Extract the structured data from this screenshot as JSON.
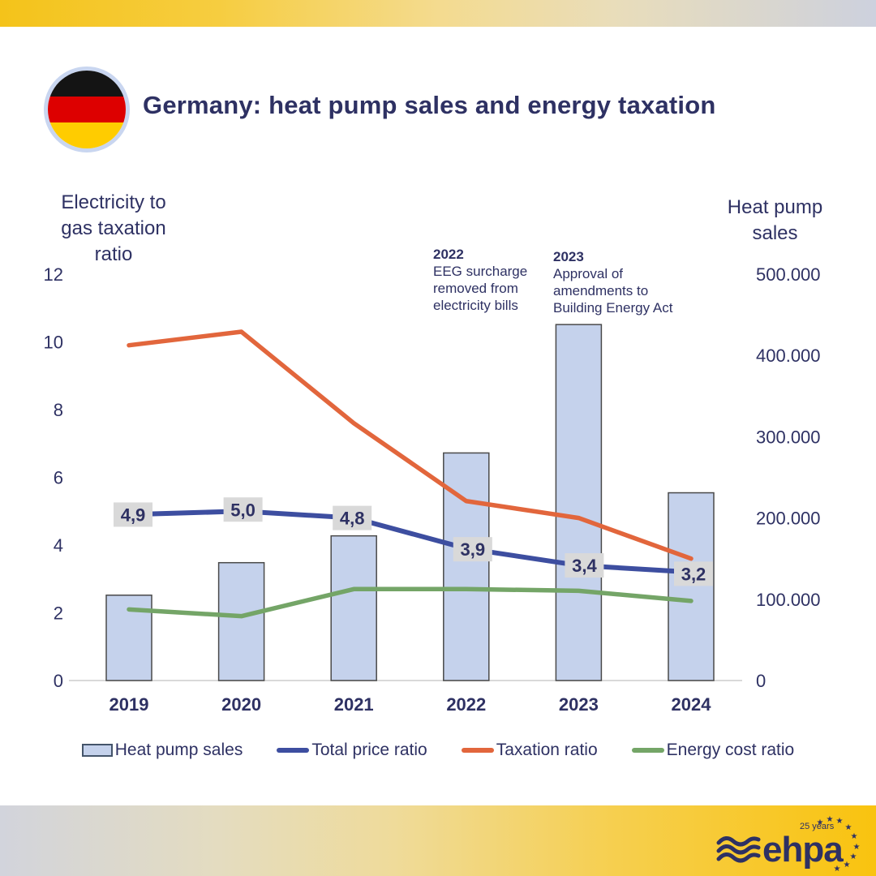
{
  "page": {
    "title": "Germany: heat pump sales and energy taxation"
  },
  "branding": {
    "flag": {
      "country": "germany",
      "stripes": [
        "#141414",
        "#DD0000",
        "#FFCC00"
      ],
      "ring": "#C9D6F0"
    },
    "logo": {
      "text": "ehpa",
      "badge": "25 years"
    }
  },
  "colors": {
    "text_navy": "#2E3163",
    "bar_fill": "#C5D2EC",
    "bar_stroke": "#4A4A4A",
    "label_bg": "#D9D9D9",
    "axis_line": "#D9D9D9",
    "blue_line": "#3D4EA0",
    "orange_line": "#E2663C",
    "green_line": "#74A567"
  },
  "chart_data": {
    "type": "combo-bar-line",
    "categories": [
      "2019",
      "2020",
      "2021",
      "2022",
      "2023",
      "2024"
    ],
    "bar_series": {
      "name": "Heat pump sales",
      "axis": "right",
      "values": [
        105000,
        145000,
        178000,
        280000,
        438000,
        231000
      ],
      "fill": "#C5D2EC",
      "stroke": "#4A4A4A"
    },
    "line_series": [
      {
        "name": "Total price ratio",
        "axis": "left",
        "color": "#3D4EA0",
        "width": 6,
        "values": [
          4.9,
          5.0,
          4.8,
          3.9,
          3.4,
          3.2
        ],
        "labels": [
          "4,9",
          "5,0",
          "4,8",
          "3,9",
          "3,4",
          "3,2"
        ]
      },
      {
        "name": "Taxation ratio",
        "axis": "left",
        "color": "#E2663C",
        "width": 5.5,
        "values": [
          9.9,
          10.3,
          7.6,
          5.3,
          4.8,
          3.6
        ]
      },
      {
        "name": "Energy cost ratio",
        "axis": "left",
        "color": "#74A567",
        "width": 5.5,
        "values": [
          2.1,
          1.9,
          2.7,
          2.7,
          2.65,
          2.35
        ]
      }
    ],
    "left_axis": {
      "title_lines": [
        "Electricity to",
        "gas taxation",
        "ratio"
      ],
      "ticks": [
        12,
        10,
        8,
        6,
        4,
        2,
        0
      ],
      "min": 0,
      "max": 12
    },
    "right_axis": {
      "title_lines": [
        "Heat pump",
        "sales"
      ],
      "tick_labels": [
        "500.000",
        "400.000",
        "300.000",
        "200.000",
        "100.000",
        "0"
      ],
      "min": 0,
      "max": 500000
    },
    "annotations": [
      {
        "year": "2022",
        "lines": [
          "EEG surcharge",
          "removed from",
          "electricity bills"
        ]
      },
      {
        "year": "2023",
        "lines": [
          "Approval of",
          "amendments to",
          "Building Energy Act"
        ]
      }
    ],
    "legend": [
      {
        "label": "Heat pump sales",
        "marker": "bar"
      },
      {
        "label": "Total price ratio",
        "marker": "line",
        "color": "#3D4EA0"
      },
      {
        "label": "Taxation ratio",
        "marker": "line",
        "color": "#E2663C"
      },
      {
        "label": "Energy cost ratio",
        "marker": "line",
        "color": "#74A567"
      }
    ],
    "grid": false,
    "legend_position": "bottom"
  }
}
